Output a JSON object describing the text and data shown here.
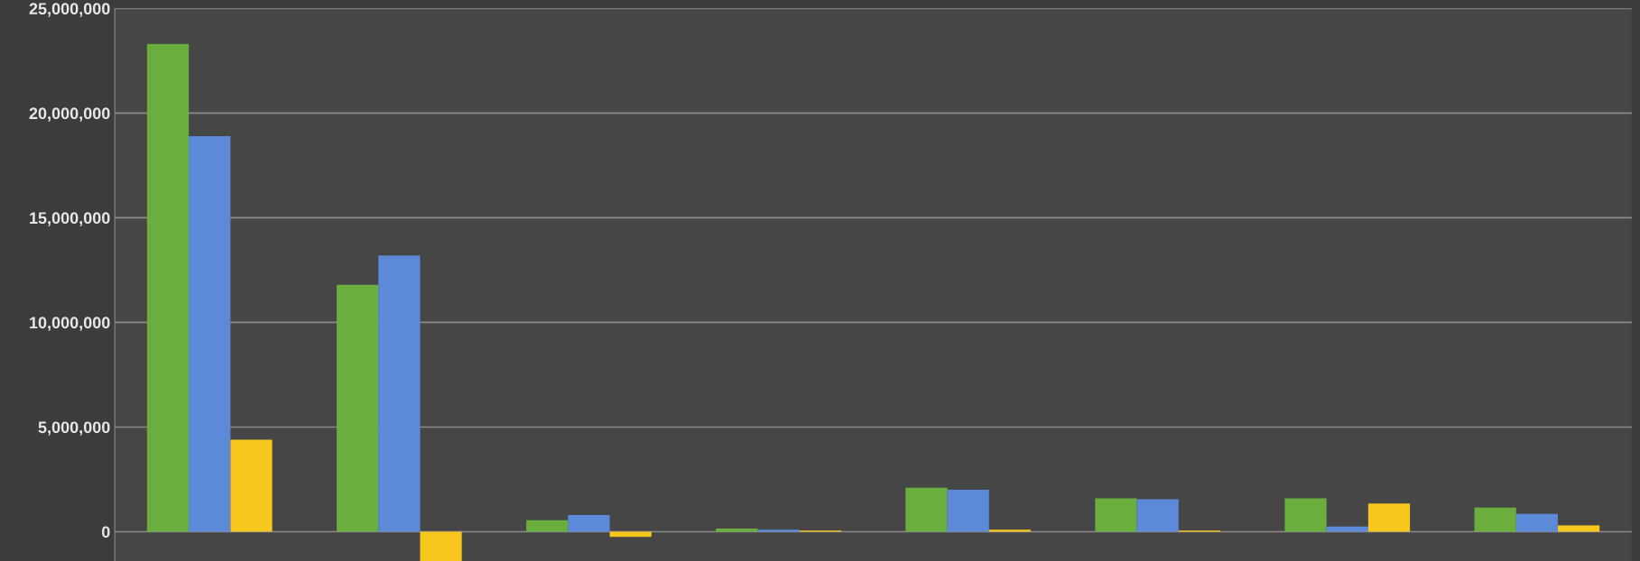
{
  "chart_data": {
    "type": "bar",
    "categories": [
      null,
      null,
      null,
      null,
      null,
      null,
      null,
      null
    ],
    "series": [
      {
        "color": "#6aaf3d",
        "values": [
          23300000,
          11800000,
          550000,
          150000,
          2100000,
          1600000,
          1600000,
          1150000
        ]
      },
      {
        "color": "#5d8ad8",
        "values": [
          18900000,
          13200000,
          800000,
          100000,
          2000000,
          1550000,
          250000,
          850000
        ]
      },
      {
        "color": "#f7c71e",
        "values": [
          4400000,
          -1400000,
          -250000,
          50000,
          100000,
          50000,
          1350000,
          300000
        ]
      }
    ],
    "ylim": [
      -1400000,
      25000000
    ],
    "yticks": [
      {
        "value": 0,
        "label": "0"
      },
      {
        "value": 5000000,
        "label": "5,000,000"
      },
      {
        "value": 10000000,
        "label": "10,000,000"
      },
      {
        "value": 15000000,
        "label": "15,000,000"
      },
      {
        "value": 20000000,
        "label": "20,000,000"
      },
      {
        "value": 25000000,
        "label": "25,000,000"
      }
    ],
    "grid": "y",
    "legend": false,
    "tick_labels": "y"
  }
}
